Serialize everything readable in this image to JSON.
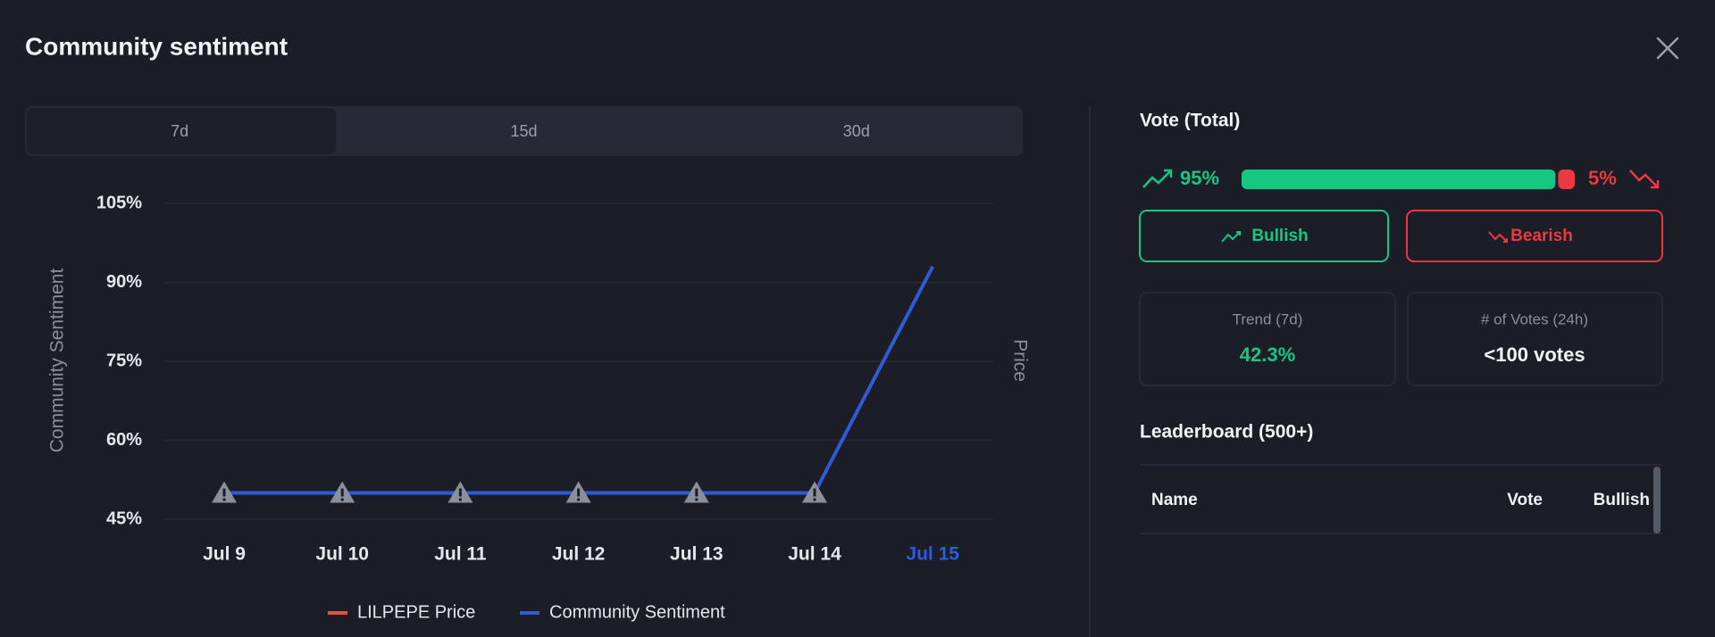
{
  "header": {
    "title": "Community sentiment"
  },
  "tabs": {
    "items": [
      "7d",
      "15d",
      "30d"
    ],
    "active": 0
  },
  "chart_data": {
    "type": "line",
    "y_label": "Community Sentiment",
    "y2_label": "Price",
    "categories": [
      "Jul 9",
      "Jul 10",
      "Jul 11",
      "Jul 12",
      "Jul 13",
      "Jul 14",
      "Jul 15"
    ],
    "highlight": 6,
    "series": [
      {
        "name": "LILPEPE Price",
        "color": "#e5533d",
        "axis": "y2",
        "values": [
          null,
          null,
          null,
          null,
          null,
          null,
          null
        ]
      },
      {
        "name": "Community Sentiment",
        "color": "#2f5bd8",
        "values": [
          50,
          50,
          50,
          50,
          50,
          50,
          93
        ],
        "flagged": [
          true,
          true,
          true,
          true,
          true,
          true,
          false
        ]
      }
    ],
    "ylim": [
      45,
      105
    ],
    "yticks": [
      {
        "value": 105,
        "label": "105%"
      },
      {
        "value": 90,
        "label": "90%"
      },
      {
        "value": 75,
        "label": "75%"
      },
      {
        "value": 60,
        "label": "60%"
      },
      {
        "value": 45,
        "label": "45%"
      }
    ],
    "grid": true
  },
  "vote": {
    "title": "Vote (Total)",
    "bullish": {
      "value": 95,
      "label": "95%"
    },
    "bearish": {
      "value": 5,
      "label": "5%"
    },
    "buttons": [
      "Bullish",
      "Bearish"
    ]
  },
  "stats": [
    {
      "label": "Trend (7d)",
      "value": "42.3%"
    },
    {
      "label": "# of Votes (24h)",
      "value": "<100 votes"
    }
  ],
  "leaderboard": {
    "title": "Leaderboard (500+)",
    "columns": [
      "Name",
      "Vote",
      "Bullish"
    ]
  }
}
